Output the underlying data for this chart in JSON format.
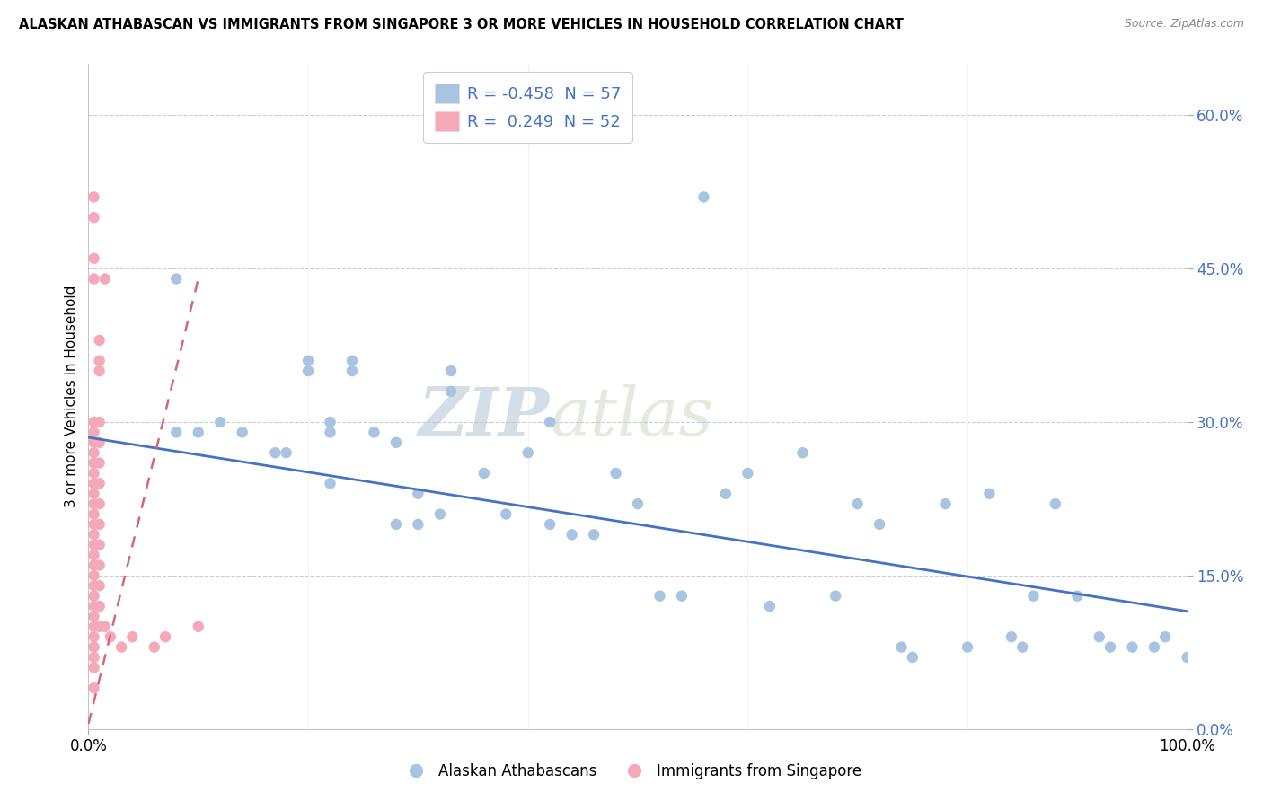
{
  "title": "ALASKAN ATHABASCAN VS IMMIGRANTS FROM SINGAPORE 3 OR MORE VEHICLES IN HOUSEHOLD CORRELATION CHART",
  "source": "Source: ZipAtlas.com",
  "ylabel": "3 or more Vehicles in Household",
  "xlim": [
    0.0,
    1.0
  ],
  "ylim": [
    0.0,
    0.65
  ],
  "ytick_vals": [
    0.0,
    0.15,
    0.3,
    0.45,
    0.6
  ],
  "ytick_labels": [
    "0.0%",
    "15.0%",
    "30.0%",
    "45.0%",
    "60.0%"
  ],
  "xtick_vals": [
    0.0,
    1.0
  ],
  "xtick_labels": [
    "0.0%",
    "100.0%"
  ],
  "legend_blue_r": "-0.458",
  "legend_blue_n": "57",
  "legend_pink_r": " 0.249",
  "legend_pink_n": "52",
  "blue_color": "#a8c4e0",
  "pink_color": "#f4a8b8",
  "blue_line_color": "#4472c4",
  "pink_line_color": "#d46878",
  "blue_scatter_x": [
    0.08,
    0.12,
    0.14,
    0.18,
    0.2,
    0.22,
    0.22,
    0.24,
    0.26,
    0.28,
    0.28,
    0.3,
    0.3,
    0.32,
    0.33,
    0.36,
    0.38,
    0.4,
    0.42,
    0.44,
    0.46,
    0.48,
    0.5,
    0.52,
    0.54,
    0.56,
    0.58,
    0.6,
    0.62,
    0.65,
    0.68,
    0.7,
    0.72,
    0.74,
    0.75,
    0.78,
    0.8,
    0.82,
    0.84,
    0.85,
    0.86,
    0.88,
    0.9,
    0.92,
    0.93,
    0.95,
    0.97,
    0.98,
    1.0,
    0.2,
    0.22,
    0.24,
    0.33,
    0.42,
    0.08,
    0.1,
    0.17
  ],
  "blue_scatter_y": [
    0.44,
    0.3,
    0.29,
    0.27,
    0.36,
    0.3,
    0.24,
    0.36,
    0.29,
    0.28,
    0.2,
    0.23,
    0.2,
    0.21,
    0.35,
    0.25,
    0.21,
    0.27,
    0.3,
    0.19,
    0.19,
    0.25,
    0.22,
    0.13,
    0.13,
    0.52,
    0.23,
    0.25,
    0.12,
    0.27,
    0.13,
    0.22,
    0.2,
    0.08,
    0.07,
    0.22,
    0.08,
    0.23,
    0.09,
    0.08,
    0.13,
    0.22,
    0.13,
    0.09,
    0.08,
    0.08,
    0.08,
    0.09,
    0.07,
    0.35,
    0.29,
    0.35,
    0.33,
    0.2,
    0.29,
    0.29,
    0.27
  ],
  "pink_scatter_x": [
    0.005,
    0.005,
    0.005,
    0.005,
    0.005,
    0.005,
    0.005,
    0.005,
    0.005,
    0.005,
    0.005,
    0.005,
    0.005,
    0.005,
    0.005,
    0.005,
    0.005,
    0.005,
    0.005,
    0.005,
    0.005,
    0.005,
    0.005,
    0.005,
    0.005,
    0.005,
    0.005,
    0.005,
    0.01,
    0.01,
    0.01,
    0.01,
    0.01,
    0.01,
    0.01,
    0.01,
    0.01,
    0.01,
    0.01,
    0.01,
    0.01,
    0.01,
    0.015,
    0.015,
    0.02,
    0.03,
    0.04,
    0.06,
    0.07,
    0.1,
    0.005,
    0.005
  ],
  "pink_scatter_y": [
    0.52,
    0.5,
    0.46,
    0.44,
    0.3,
    0.29,
    0.28,
    0.27,
    0.26,
    0.25,
    0.24,
    0.23,
    0.22,
    0.21,
    0.2,
    0.19,
    0.18,
    0.17,
    0.16,
    0.15,
    0.14,
    0.13,
    0.12,
    0.11,
    0.1,
    0.09,
    0.08,
    0.07,
    0.38,
    0.36,
    0.35,
    0.3,
    0.28,
    0.26,
    0.24,
    0.22,
    0.2,
    0.18,
    0.16,
    0.14,
    0.12,
    0.1,
    0.44,
    0.1,
    0.09,
    0.08,
    0.09,
    0.08,
    0.09,
    0.1,
    0.06,
    0.04
  ],
  "blue_trend_x": [
    0.0,
    1.0
  ],
  "blue_trend_y": [
    0.285,
    0.115
  ],
  "pink_trend_x": [
    0.0,
    0.1
  ],
  "pink_trend_y": [
    0.005,
    0.44
  ],
  "watermark_zip": "ZIP",
  "watermark_atlas": "atlas",
  "legend1_label1": "Alaskan Athabascans",
  "legend1_label2": "Immigrants from Singapore"
}
